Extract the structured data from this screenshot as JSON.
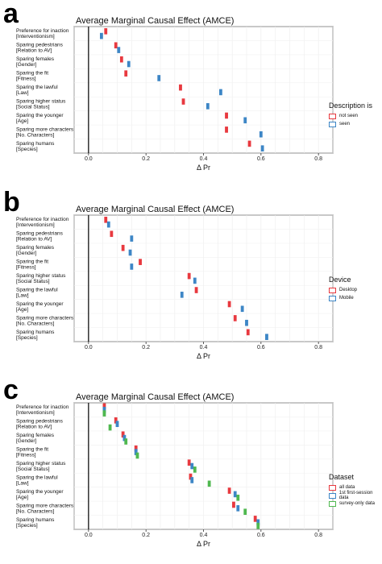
{
  "panels": [
    {
      "letter": "a",
      "legend_title": "Description is",
      "chart_data": {
        "type": "scatter",
        "title": "Average Marginal Causal Effect (AMCE)",
        "xlabel": "Δ Pr",
        "xlim": [
          -0.05,
          0.85
        ],
        "x_ticks": [
          "0.0",
          "0.2",
          "0.4",
          "0.6",
          "0.8"
        ],
        "categories": [
          [
            "Preference for inaction",
            "[Interventionism]"
          ],
          [
            "Sparing pedestrians",
            "[Relation to AV]"
          ],
          [
            "Sparing females",
            "[Gender]"
          ],
          [
            "Sparing the fit",
            "[Fitness]"
          ],
          [
            "Sparing the lawful",
            "[Law]"
          ],
          [
            "Sparing higher status",
            "[Social Status]"
          ],
          [
            "Sparing the younger",
            "[Age]"
          ],
          [
            "Sparing more characters",
            "[No. Characters]"
          ],
          [
            "Sparing humans",
            "[Species]"
          ]
        ],
        "series": [
          {
            "name": "not seen",
            "color": "#e8393f",
            "values": [
              0.06,
              0.095,
              0.115,
              0.13,
              0.32,
              0.33,
              0.48,
              0.48,
              0.56
            ]
          },
          {
            "name": "seen",
            "color": "#3d86c6",
            "values": [
              0.045,
              0.105,
              0.14,
              0.245,
              0.46,
              0.415,
              0.545,
              0.6,
              0.605
            ]
          }
        ],
        "grid": true,
        "legend_position": "right"
      }
    },
    {
      "letter": "b",
      "legend_title": "Device",
      "chart_data": {
        "type": "scatter",
        "title": "Average Marginal Causal Effect (AMCE)",
        "xlabel": "Δ Pr",
        "xlim": [
          -0.05,
          0.85
        ],
        "x_ticks": [
          "0.0",
          "0.2",
          "0.4",
          "0.6",
          "0.8"
        ],
        "categories": [
          [
            "Preference for inaction",
            "[Interventionism]"
          ],
          [
            "Sparing pedestrians",
            "[Relation to AV]"
          ],
          [
            "Sparing females",
            "[Gender]"
          ],
          [
            "Sparing the fit",
            "[Fitness]"
          ],
          [
            "Sparing higher status",
            "[Social Status]"
          ],
          [
            "Sparing the lawful",
            "[Law]"
          ],
          [
            "Sparing the younger",
            "[Age]"
          ],
          [
            "Sparing more characters",
            "[No. Characters]"
          ],
          [
            "Sparing humans",
            "[Species]"
          ]
        ],
        "series": [
          {
            "name": "Desktop",
            "color": "#e8393f",
            "values": [
              0.06,
              0.08,
              0.12,
              0.18,
              0.35,
              0.375,
              0.49,
              0.51,
              0.555
            ]
          },
          {
            "name": "Mobile",
            "color": "#3d86c6",
            "values": [
              0.07,
              0.15,
              0.145,
              0.15,
              0.37,
              0.325,
              0.535,
              0.55,
              0.62
            ]
          }
        ],
        "grid": true,
        "legend_position": "right"
      }
    },
    {
      "letter": "c",
      "legend_title": "Dataset",
      "chart_data": {
        "type": "scatter",
        "title": "Average Marginal Causal Effect (AMCE)",
        "xlabel": "Δ Pr",
        "xlim": [
          -0.05,
          0.85
        ],
        "x_ticks": [
          "0.0",
          "0.2",
          "0.4",
          "0.6",
          "0.8"
        ],
        "categories": [
          [
            "Preference for inaction",
            "[Interventionism]"
          ],
          [
            "Sparing pedestrians",
            "[Relation to AV]"
          ],
          [
            "Sparing females",
            "[Gender]"
          ],
          [
            "Sparing the fit",
            "[Fitness]"
          ],
          [
            "Sparing higher status",
            "[Social Status]"
          ],
          [
            "Sparing the lawful",
            "[Law]"
          ],
          [
            "Sparing the younger",
            "[Age]"
          ],
          [
            "Sparing more characters",
            "[No. Characters]"
          ],
          [
            "Sparing humans",
            "[Species]"
          ]
        ],
        "series": [
          {
            "name": "all data",
            "color": "#e8393f",
            "values": [
              0.055,
              0.095,
              0.12,
              0.165,
              0.35,
              0.355,
              0.49,
              0.505,
              0.58
            ]
          },
          {
            "name": "1st first-session data",
            "color": "#3d86c6",
            "values": [
              0.055,
              0.1,
              0.125,
              0.165,
              0.36,
              0.36,
              0.51,
              0.52,
              0.59
            ]
          },
          {
            "name": "survey-only data",
            "color": "#4fb84f",
            "values": [
              0.055,
              0.075,
              0.13,
              0.17,
              0.37,
              0.42,
              0.52,
              0.545,
              0.59
            ]
          }
        ],
        "grid": true,
        "legend_position": "right"
      }
    }
  ]
}
